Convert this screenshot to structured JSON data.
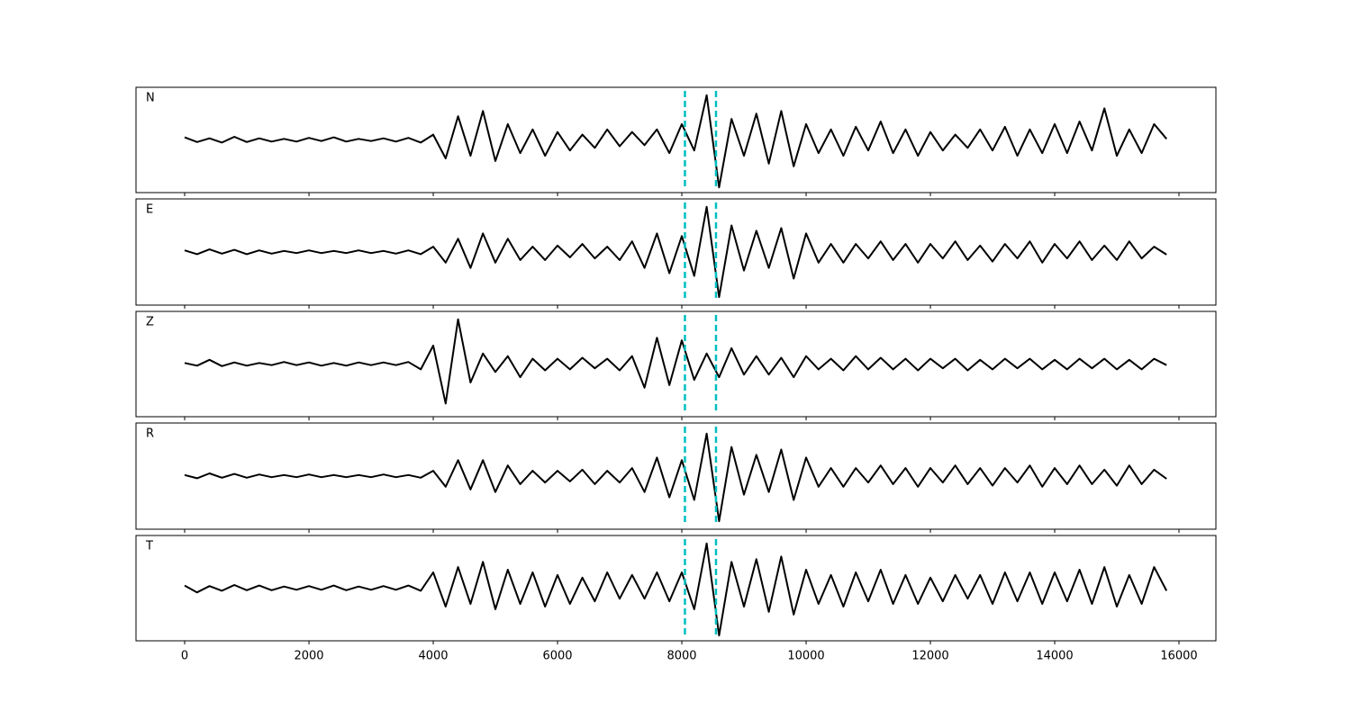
{
  "chart_data": {
    "type": "line",
    "x": [
      0,
      200,
      400,
      600,
      800,
      1000,
      1200,
      1400,
      1600,
      1800,
      2000,
      2200,
      2400,
      2600,
      2800,
      3000,
      3200,
      3400,
      3600,
      3800,
      4000,
      4200,
      4400,
      4600,
      4800,
      5000,
      5200,
      5400,
      5600,
      5800,
      6000,
      6200,
      6400,
      6600,
      6800,
      7000,
      7200,
      7400,
      7600,
      7800,
      8000,
      8200,
      8400,
      8600,
      8800,
      9000,
      9200,
      9400,
      9600,
      9800,
      10000,
      10200,
      10400,
      10600,
      10800,
      11000,
      11200,
      11400,
      11600,
      11800,
      12000,
      12200,
      12400,
      12600,
      12800,
      13000,
      13200,
      13400,
      13600,
      13800,
      14000,
      14200,
      14400,
      14600,
      14800,
      15000,
      15200,
      15400,
      15600,
      15800
    ],
    "series": [
      {
        "name": "N",
        "color": "#000000",
        "values": [
          0.05,
          -0.04,
          0.03,
          -0.05,
          0.06,
          -0.04,
          0.03,
          -0.03,
          0.02,
          -0.03,
          0.04,
          -0.02,
          0.05,
          -0.03,
          0.02,
          -0.02,
          0.03,
          -0.03,
          0.04,
          -0.05,
          0.1,
          -0.35,
          0.45,
          -0.3,
          0.55,
          -0.4,
          0.3,
          -0.25,
          0.2,
          -0.3,
          0.15,
          -0.2,
          0.1,
          -0.15,
          0.2,
          -0.12,
          0.15,
          -0.1,
          0.2,
          -0.25,
          0.3,
          -0.2,
          0.85,
          -0.9,
          0.4,
          -0.3,
          0.5,
          -0.45,
          0.55,
          -0.5,
          0.3,
          -0.25,
          0.2,
          -0.3,
          0.25,
          -0.2,
          0.35,
          -0.25,
          0.2,
          -0.3,
          0.15,
          -0.2,
          0.1,
          -0.15,
          0.2,
          -0.2,
          0.25,
          -0.3,
          0.2,
          -0.25,
          0.3,
          -0.25,
          0.35,
          -0.2,
          0.6,
          -0.3,
          0.2,
          -0.25,
          0.3,
          0.02
        ]
      },
      {
        "name": "E",
        "color": "#000000",
        "values": [
          0.03,
          -0.04,
          0.05,
          -0.03,
          0.04,
          -0.04,
          0.03,
          -0.03,
          0.02,
          -0.02,
          0.03,
          -0.02,
          0.02,
          -0.02,
          0.03,
          -0.02,
          0.02,
          -0.03,
          0.03,
          -0.04,
          0.1,
          -0.2,
          0.25,
          -0.3,
          0.35,
          -0.2,
          0.25,
          -0.15,
          0.1,
          -0.15,
          0.12,
          -0.1,
          0.15,
          -0.12,
          0.1,
          -0.15,
          0.2,
          -0.3,
          0.35,
          -0.4,
          0.3,
          -0.45,
          0.85,
          -0.85,
          0.5,
          -0.35,
          0.4,
          -0.3,
          0.45,
          -0.5,
          0.35,
          -0.2,
          0.15,
          -0.2,
          0.15,
          -0.12,
          0.2,
          -0.15,
          0.15,
          -0.2,
          0.15,
          -0.12,
          0.2,
          -0.15,
          0.12,
          -0.18,
          0.15,
          -0.12,
          0.2,
          -0.2,
          0.15,
          -0.12,
          0.2,
          -0.15,
          0.12,
          -0.15,
          0.2,
          -0.12,
          0.1,
          -0.05
        ]
      },
      {
        "name": "Z",
        "color": "#000000",
        "values": [
          0.02,
          -0.03,
          0.08,
          -0.04,
          0.03,
          -0.03,
          0.02,
          -0.02,
          0.04,
          -0.02,
          0.03,
          -0.03,
          0.02,
          -0.03,
          0.03,
          -0.02,
          0.03,
          -0.02,
          0.04,
          -0.1,
          0.35,
          -0.75,
          0.85,
          -0.35,
          0.2,
          -0.15,
          0.15,
          -0.25,
          0.1,
          -0.12,
          0.1,
          -0.1,
          0.12,
          -0.08,
          0.1,
          -0.12,
          0.15,
          -0.45,
          0.5,
          -0.4,
          0.45,
          -0.3,
          0.2,
          -0.25,
          0.3,
          -0.2,
          0.15,
          -0.2,
          0.12,
          -0.25,
          0.15,
          -0.1,
          0.1,
          -0.12,
          0.15,
          -0.1,
          0.12,
          -0.1,
          0.1,
          -0.12,
          0.1,
          -0.08,
          0.1,
          -0.12,
          0.08,
          -0.1,
          0.1,
          -0.08,
          0.1,
          -0.1,
          0.08,
          -0.1,
          0.1,
          -0.08,
          0.1,
          -0.1,
          0.08,
          -0.1,
          0.1,
          -0.02
        ]
      },
      {
        "name": "R",
        "color": "#000000",
        "values": [
          0.02,
          -0.04,
          0.05,
          -0.03,
          0.04,
          -0.03,
          0.03,
          -0.02,
          0.02,
          -0.02,
          0.03,
          -0.02,
          0.02,
          -0.02,
          0.02,
          -0.02,
          0.03,
          -0.02,
          0.02,
          -0.03,
          0.1,
          -0.2,
          0.3,
          -0.25,
          0.3,
          -0.3,
          0.2,
          -0.15,
          0.1,
          -0.12,
          0.1,
          -0.1,
          0.12,
          -0.15,
          0.1,
          -0.12,
          0.15,
          -0.3,
          0.35,
          -0.4,
          0.3,
          -0.45,
          0.8,
          -0.85,
          0.55,
          -0.35,
          0.4,
          -0.3,
          0.5,
          -0.45,
          0.35,
          -0.2,
          0.15,
          -0.2,
          0.15,
          -0.12,
          0.2,
          -0.15,
          0.15,
          -0.2,
          0.15,
          -0.12,
          0.2,
          -0.15,
          0.15,
          -0.18,
          0.15,
          -0.12,
          0.2,
          -0.2,
          0.15,
          -0.15,
          0.2,
          -0.15,
          0.12,
          -0.18,
          0.2,
          -0.15,
          0.12,
          -0.05
        ]
      },
      {
        "name": "T",
        "color": "#000000",
        "values": [
          0.05,
          -0.08,
          0.04,
          -0.05,
          0.06,
          -0.04,
          0.05,
          -0.04,
          0.03,
          -0.03,
          0.04,
          -0.03,
          0.05,
          -0.04,
          0.03,
          -0.03,
          0.04,
          -0.03,
          0.05,
          -0.05,
          0.3,
          -0.35,
          0.4,
          -0.3,
          0.5,
          -0.4,
          0.35,
          -0.3,
          0.3,
          -0.35,
          0.25,
          -0.3,
          0.2,
          -0.25,
          0.3,
          -0.2,
          0.25,
          -0.2,
          0.3,
          -0.25,
          0.3,
          -0.4,
          0.85,
          -0.9,
          0.5,
          -0.35,
          0.55,
          -0.45,
          0.6,
          -0.5,
          0.35,
          -0.3,
          0.25,
          -0.35,
          0.3,
          -0.25,
          0.35,
          -0.3,
          0.25,
          -0.3,
          0.2,
          -0.25,
          0.25,
          -0.2,
          0.25,
          -0.3,
          0.3,
          -0.25,
          0.3,
          -0.3,
          0.3,
          -0.25,
          0.35,
          -0.3,
          0.4,
          -0.35,
          0.25,
          -0.3,
          0.4,
          -0.05
        ]
      }
    ],
    "xlim": [
      -783,
      16594
    ],
    "xticks": [
      0,
      2000,
      4000,
      6000,
      8000,
      10000,
      12000,
      14000,
      16000
    ],
    "ylim": [
      -1,
      1
    ],
    "vlines": [
      8050,
      8550
    ],
    "vline_color": "#00bfbf"
  }
}
